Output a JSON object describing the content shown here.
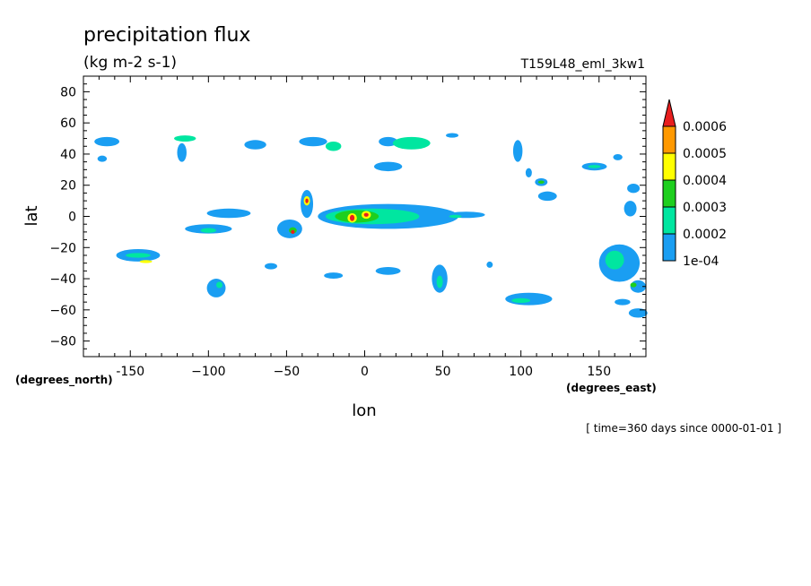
{
  "chart_data": {
    "type": "heatmap",
    "title": "precipitation flux",
    "units": "(kg m-2 s-1)",
    "run_label": "T159L48_eml_3kw1",
    "xlabel": "lon",
    "ylabel": "lat",
    "x_units": "(degrees_east)",
    "y_units": "(degrees_north)",
    "time_label": "[ time=360 days since 0000-01-01 ]",
    "xlim": [
      -180,
      180
    ],
    "ylim": [
      -90,
      90
    ],
    "x_ticks": [
      -150,
      -100,
      -50,
      0,
      50,
      100,
      150
    ],
    "x_tick_labels": [
      "-150",
      "−100",
      "−50",
      "0",
      "50",
      "100",
      "150"
    ],
    "y_ticks": [
      80,
      60,
      40,
      20,
      0,
      -20,
      -40,
      -60,
      -80
    ],
    "y_tick_labels": [
      "80",
      "60",
      "40",
      "20",
      "0",
      "−20",
      "−40",
      "−60",
      "−80"
    ],
    "grid": false,
    "legend_position": "right",
    "colorbar": {
      "levels": [
        "1e-04",
        "0.0002",
        "0.0003",
        "0.0004",
        "0.0005",
        "0.0006"
      ],
      "colors": [
        "#1a9ef2",
        "#00e6a0",
        "#1ecf1e",
        "#ffff00",
        "#ff9900",
        "#e81e1e"
      ]
    },
    "cells": [
      {
        "lon": -165,
        "lat": 48,
        "r_lon": 8,
        "r_lat": 3,
        "level": 1
      },
      {
        "lon": -168,
        "lat": 37,
        "r_lon": 3,
        "r_lat": 2,
        "level": 1
      },
      {
        "lon": -115,
        "lat": 50,
        "r_lon": 7,
        "r_lat": 2,
        "level": 2
      },
      {
        "lon": -117,
        "lat": 41,
        "r_lon": 3,
        "r_lat": 6,
        "level": 1
      },
      {
        "lon": -70,
        "lat": 46,
        "r_lon": 7,
        "r_lat": 3,
        "level": 1
      },
      {
        "lon": -33,
        "lat": 48,
        "r_lon": 9,
        "r_lat": 3,
        "level": 1
      },
      {
        "lon": -20,
        "lat": 45,
        "r_lon": 5,
        "r_lat": 3,
        "level": 2
      },
      {
        "lon": 15,
        "lat": 48,
        "r_lon": 6,
        "r_lat": 3,
        "level": 1
      },
      {
        "lon": 30,
        "lat": 47,
        "r_lon": 12,
        "r_lat": 4,
        "level": 2
      },
      {
        "lon": 56,
        "lat": 52,
        "r_lon": 4,
        "r_lat": 1.5,
        "level": 1
      },
      {
        "lon": 15,
        "lat": 32,
        "r_lon": 9,
        "r_lat": 3,
        "level": 1
      },
      {
        "lon": -87,
        "lat": 2,
        "r_lon": 14,
        "r_lat": 3,
        "level": 1
      },
      {
        "lon": -100,
        "lat": -8,
        "r_lon": 15,
        "r_lat": 3,
        "level": 1
      },
      {
        "lon": -100,
        "lat": -9,
        "r_lon": 5,
        "r_lat": 1.5,
        "level": 2
      },
      {
        "lon": -37,
        "lat": 8,
        "r_lon": 4,
        "r_lat": 9,
        "level": 1
      },
      {
        "lon": -37,
        "lat": 10,
        "r_lon": 2,
        "r_lat": 3,
        "level": 4
      },
      {
        "lon": -37,
        "lat": 10,
        "r_lon": 1,
        "r_lat": 1.5,
        "level": 6
      },
      {
        "lon": -48,
        "lat": -8,
        "r_lon": 8,
        "r_lat": 6,
        "level": 1
      },
      {
        "lon": -46,
        "lat": -9,
        "r_lon": 2.5,
        "r_lat": 2,
        "level": 3
      },
      {
        "lon": -46,
        "lat": -10,
        "r_lon": 1.2,
        "r_lat": 1.2,
        "level": 6
      },
      {
        "lon": 15,
        "lat": 0,
        "r_lon": 45,
        "r_lat": 8,
        "level": 1
      },
      {
        "lon": 5,
        "lat": 0,
        "r_lon": 30,
        "r_lat": 5,
        "level": 2
      },
      {
        "lon": -5,
        "lat": 0,
        "r_lon": 14,
        "r_lat": 4,
        "level": 3
      },
      {
        "lon": -8,
        "lat": -1,
        "r_lon": 3,
        "r_lat": 3,
        "level": 4
      },
      {
        "lon": -8,
        "lat": -1,
        "r_lon": 1.5,
        "r_lat": 2,
        "level": 6
      },
      {
        "lon": 1,
        "lat": 1,
        "r_lon": 3,
        "r_lat": 2.5,
        "level": 4
      },
      {
        "lon": 1,
        "lat": 1,
        "r_lon": 1.5,
        "r_lat": 1.2,
        "level": 6
      },
      {
        "lon": 65,
        "lat": 1,
        "r_lon": 12,
        "r_lat": 2,
        "level": 1
      },
      {
        "lon": 58,
        "lat": 0,
        "r_lon": 4,
        "r_lat": 1,
        "level": 2
      },
      {
        "lon": -145,
        "lat": -25,
        "r_lon": 14,
        "r_lat": 4,
        "level": 1
      },
      {
        "lon": -145,
        "lat": -25,
        "r_lon": 8,
        "r_lat": 1.5,
        "level": 2
      },
      {
        "lon": -140,
        "lat": -29,
        "r_lon": 4,
        "r_lat": 1,
        "level": 4
      },
      {
        "lon": -95,
        "lat": -46,
        "r_lon": 6,
        "r_lat": 6,
        "level": 1
      },
      {
        "lon": -93,
        "lat": -44,
        "r_lon": 2,
        "r_lat": 2,
        "level": 2
      },
      {
        "lon": -60,
        "lat": -32,
        "r_lon": 4,
        "r_lat": 2,
        "level": 1
      },
      {
        "lon": -20,
        "lat": -38,
        "r_lon": 6,
        "r_lat": 2,
        "level": 1
      },
      {
        "lon": 15,
        "lat": -35,
        "r_lon": 8,
        "r_lat": 2.5,
        "level": 1
      },
      {
        "lon": 48,
        "lat": -40,
        "r_lon": 5,
        "r_lat": 9,
        "level": 1
      },
      {
        "lon": 48,
        "lat": -42,
        "r_lon": 2,
        "r_lat": 4,
        "level": 2
      },
      {
        "lon": 80,
        "lat": -31,
        "r_lon": 2,
        "r_lat": 2,
        "level": 1
      },
      {
        "lon": 105,
        "lat": -53,
        "r_lon": 15,
        "r_lat": 4,
        "level": 1
      },
      {
        "lon": 100,
        "lat": -54,
        "r_lon": 6,
        "r_lat": 1.5,
        "level": 2
      },
      {
        "lon": 98,
        "lat": 42,
        "r_lon": 3,
        "r_lat": 7,
        "level": 1
      },
      {
        "lon": 105,
        "lat": 28,
        "r_lon": 2,
        "r_lat": 3,
        "level": 1
      },
      {
        "lon": 113,
        "lat": 22,
        "r_lon": 4,
        "r_lat": 2.5,
        "level": 1
      },
      {
        "lon": 113,
        "lat": 22,
        "r_lon": 2,
        "r_lat": 1,
        "level": 3
      },
      {
        "lon": 117,
        "lat": 13,
        "r_lon": 6,
        "r_lat": 3,
        "level": 1
      },
      {
        "lon": 147,
        "lat": 32,
        "r_lon": 8,
        "r_lat": 2.5,
        "level": 1
      },
      {
        "lon": 147,
        "lat": 32,
        "r_lon": 4,
        "r_lat": 1,
        "level": 2
      },
      {
        "lon": 162,
        "lat": 38,
        "r_lon": 3,
        "r_lat": 2,
        "level": 1
      },
      {
        "lon": 172,
        "lat": 18,
        "r_lon": 4,
        "r_lat": 3,
        "level": 1
      },
      {
        "lon": 170,
        "lat": 5,
        "r_lon": 4,
        "r_lat": 5,
        "level": 1
      },
      {
        "lon": 163,
        "lat": -30,
        "r_lon": 13,
        "r_lat": 12,
        "level": 1
      },
      {
        "lon": 160,
        "lat": -28,
        "r_lon": 6,
        "r_lat": 6,
        "level": 2
      },
      {
        "lon": 175,
        "lat": -45,
        "r_lon": 5,
        "r_lat": 4,
        "level": 1
      },
      {
        "lon": 172,
        "lat": -44,
        "r_lon": 2,
        "r_lat": 1.5,
        "level": 3
      },
      {
        "lon": 165,
        "lat": -55,
        "r_lon": 5,
        "r_lat": 2,
        "level": 1
      },
      {
        "lon": 175,
        "lat": -62,
        "r_lon": 6,
        "r_lat": 3,
        "level": 1
      }
    ]
  }
}
